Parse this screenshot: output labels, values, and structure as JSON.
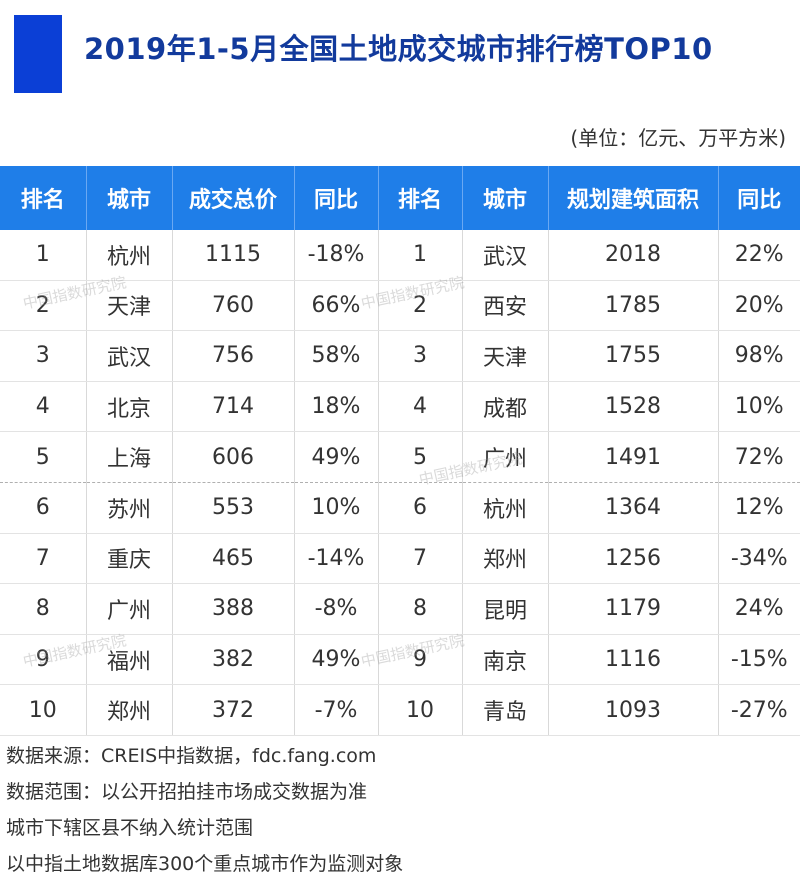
{
  "title": "2019年1-5月全国土地成交城市排行榜TOP10",
  "unit": "(单位：亿元、万平方米)",
  "colors": {
    "accent": "#0b3fd6",
    "header_bg": "#1f7ee8",
    "title": "#123a9c"
  },
  "table": {
    "headers": [
      "排名",
      "城市",
      "成交总价",
      "同比",
      "排名",
      "城市",
      "规划建筑面积",
      "同比"
    ],
    "rows": [
      [
        "1",
        "杭州",
        "1115",
        "-18%",
        "1",
        "武汉",
        "2018",
        "22%"
      ],
      [
        "2",
        "天津",
        "760",
        "66%",
        "2",
        "西安",
        "1785",
        "20%"
      ],
      [
        "3",
        "武汉",
        "756",
        "58%",
        "3",
        "天津",
        "1755",
        "98%"
      ],
      [
        "4",
        "北京",
        "714",
        "18%",
        "4",
        "成都",
        "1528",
        "10%"
      ],
      [
        "5",
        "上海",
        "606",
        "49%",
        "5",
        "广州",
        "1491",
        "72%"
      ],
      [
        "6",
        "苏州",
        "553",
        "10%",
        "6",
        "杭州",
        "1364",
        "12%"
      ],
      [
        "7",
        "重庆",
        "465",
        "-14%",
        "7",
        "郑州",
        "1256",
        "-34%"
      ],
      [
        "8",
        "广州",
        "388",
        "-8%",
        "8",
        "昆明",
        "1179",
        "24%"
      ],
      [
        "9",
        "福州",
        "382",
        "49%",
        "9",
        "南京",
        "1116",
        "-15%"
      ],
      [
        "10",
        "郑州",
        "372",
        "-7%",
        "10",
        "青岛",
        "1093",
        "-27%"
      ]
    ]
  },
  "notes": [
    "数据来源：CREIS中指数据，fdc.fang.com",
    "数据范围：以公开招拍挂市场成交数据为准",
    "城市下辖区县不纳入统计范围",
    "以中指土地数据库300个重点城市作为监测对象"
  ],
  "watermark": "中国指数研究院"
}
